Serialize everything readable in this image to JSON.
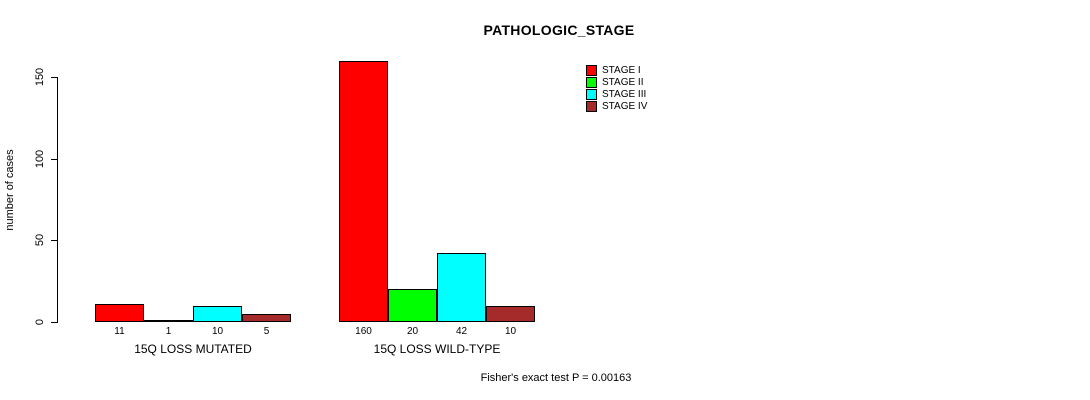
{
  "chart_data": {
    "type": "bar",
    "title": "PATHOLOGIC_STAGE",
    "ylabel": "number of cases",
    "xlabel": "",
    "ylim": [
      0,
      160
    ],
    "yticks": [
      0,
      50,
      100,
      150
    ],
    "grid": false,
    "legend_position": "top-right",
    "legend": [
      {
        "label": "STAGE I",
        "color": "#FF0000"
      },
      {
        "label": "STAGE II",
        "color": "#00FF00"
      },
      {
        "label": "STAGE III",
        "color": "#00FFFF"
      },
      {
        "label": "STAGE IV",
        "color": "#A52A2A"
      }
    ],
    "categories": [
      "15Q LOSS MUTATED",
      "15Q LOSS WILD-TYPE"
    ],
    "series": [
      {
        "name": "STAGE I",
        "color": "#FF0000",
        "values": [
          11,
          160
        ]
      },
      {
        "name": "STAGE II",
        "color": "#00FF00",
        "values": [
          1,
          20
        ]
      },
      {
        "name": "STAGE III",
        "color": "#00FFFF",
        "values": [
          10,
          42
        ]
      },
      {
        "name": "STAGE IV",
        "color": "#A52A2A",
        "values": [
          5,
          10
        ]
      }
    ],
    "bar_value_labels": true,
    "annotation": "Fisher's exact test P = 0.00163"
  }
}
